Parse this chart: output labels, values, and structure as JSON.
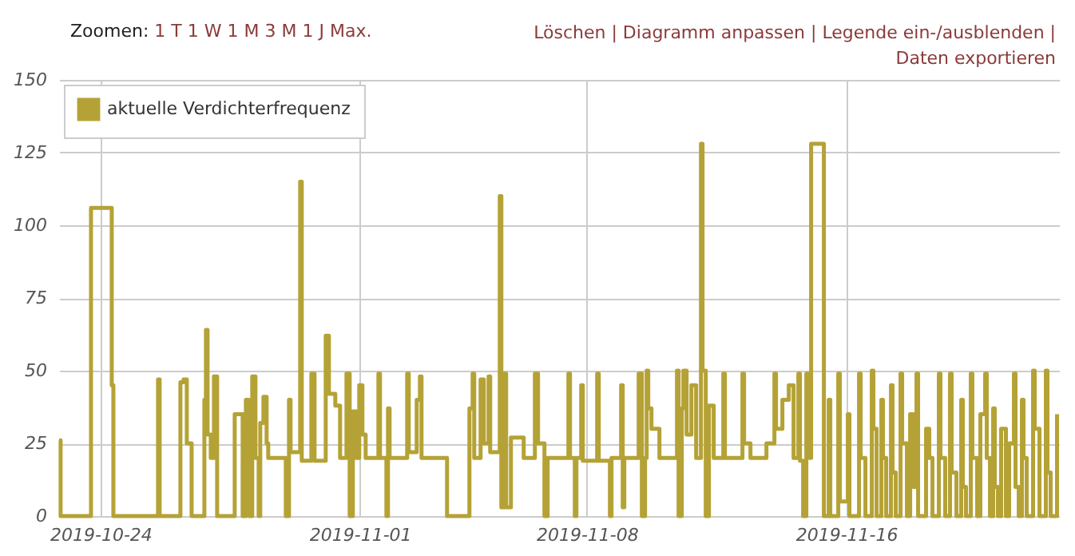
{
  "chart_data": {
    "type": "step",
    "legend": "top left",
    "grid": true,
    "annotations": [
      "Zoomen:",
      "1 T",
      "1 W",
      "1 M",
      "3 M",
      "1 J",
      "Max.",
      "Löschen |",
      "Diagramm anpassen |",
      "Legende ein-/ausblenden |",
      "Daten exportieren"
    ],
    "xlim": [
      "2019-10-22T17:18",
      "2019-11-22T13:30"
    ],
    "xticks": [
      "2019-10-24",
      "2019-11-01",
      "2019-11-08",
      "2019-11-16"
    ],
    "ylim": [
      0,
      150
    ],
    "yticks": [
      0,
      25,
      50,
      75,
      100,
      125,
      150
    ],
    "x": [
      "2019-10-22T17:18",
      "2019-10-22T18:25",
      "2019-10-23T16:55",
      "2019-10-24T08:16",
      "2019-10-24T09:28",
      "2019-10-25T18:33",
      "2019-10-25T19:44",
      "2019-10-26T11:06",
      "2019-10-26T13:28",
      "2019-10-26T15:50",
      "2019-10-26T19:23",
      "2019-10-27T04:50",
      "2019-10-27T06:00",
      "2019-10-27T07:12",
      "2019-10-27T09:34",
      "2019-10-27T11:55",
      "2019-10-27T14:17",
      "2019-10-28T03:17",
      "2019-10-28T09:12",
      "2019-10-28T11:34",
      "2019-10-28T13:56",
      "2019-10-28T16:17",
      "2019-10-28T18:39",
      "2019-10-28T21:01",
      "2019-10-28T22:12",
      "2019-10-29T00:34",
      "2019-10-29T02:55",
      "2019-10-29T04:06",
      "2019-10-29T17:07",
      "2019-10-29T19:29",
      "2019-10-29T20:39",
      "2019-10-30T03:45",
      "2019-10-30T04:56",
      "2019-10-30T12:02",
      "2019-10-30T14:24",
      "2019-10-30T22:40",
      "2019-10-31T01:02",
      "2019-10-31T05:45",
      "2019-10-31T09:18",
      "2019-10-31T14:02",
      "2019-10-31T16:24",
      "2019-10-31T18:45",
      "2019-10-31T21:07",
      "2019-10-31T23:29",
      "2019-11-01T01:51",
      "2019-11-01T04:13",
      "2019-11-01T13:40",
      "2019-11-01T14:51",
      "2019-11-01T19:35",
      "2019-11-01T20:46",
      "2019-11-01T21:57",
      "2019-11-02T10:57",
      "2019-11-02T12:08",
      "2019-11-02T18:02",
      "2019-11-02T20:24",
      "2019-11-02T21:35",
      "2019-11-03T16:29",
      "2019-11-04T09:03",
      "2019-11-04T11:25",
      "2019-11-04T12:36",
      "2019-11-04T17:19",
      "2019-11-04T19:41",
      "2019-11-04T23:14",
      "2019-11-05T00:25",
      "2019-11-05T07:30",
      "2019-11-05T08:41",
      "2019-11-05T11:03",
      "2019-11-05T12:14",
      "2019-11-05T15:46",
      "2019-11-06T01:13",
      "2019-11-06T09:30",
      "2019-11-06T11:51",
      "2019-11-06T16:35",
      "2019-11-06T18:57",
      "2019-11-07T10:19",
      "2019-11-07T11:30",
      "2019-11-07T15:03",
      "2019-11-07T16:14",
      "2019-11-07T19:47",
      "2019-11-07T20:58",
      "2019-11-08T07:36",
      "2019-11-08T08:47",
      "2019-11-08T17:03",
      "2019-11-08T18:14",
      "2019-11-09T01:20",
      "2019-11-09T02:31",
      "2019-11-09T03:42",
      "2019-11-09T14:20",
      "2019-11-09T16:42",
      "2019-11-09T19:04",
      "2019-11-09T20:15",
      "2019-11-09T21:26",
      "2019-11-09T23:48",
      "2019-11-10T05:42",
      "2019-11-10T18:42",
      "2019-11-10T19:53",
      "2019-11-10T22:15",
      "2019-11-10T23:26",
      "2019-11-11T01:48",
      "2019-11-11T05:21",
      "2019-11-11T08:53",
      "2019-11-11T12:26",
      "2019-11-11T13:37",
      "2019-11-11T15:59",
      "2019-11-11T18:21",
      "2019-11-11T21:53",
      "2019-11-12T04:59",
      "2019-11-12T06:10",
      "2019-11-12T19:10",
      "2019-11-12T20:21",
      "2019-11-13T01:05",
      "2019-11-13T12:54",
      "2019-11-13T18:49",
      "2019-11-13T20:00",
      "2019-11-14T00:43",
      "2019-11-14T05:27",
      "2019-11-14T09:00",
      "2019-11-14T12:33",
      "2019-11-14T13:43",
      "2019-11-14T16:05",
      "2019-11-14T18:27",
      "2019-11-14T20:49",
      "2019-11-14T21:59",
      "2019-11-15T07:26",
      "2019-11-15T11:00",
      "2019-11-15T12:11",
      "2019-11-15T18:05",
      "2019-11-15T19:16",
      "2019-11-16T01:10",
      "2019-11-16T02:21",
      "2019-11-16T09:27",
      "2019-11-16T10:38",
      "2019-11-16T14:11",
      "2019-11-16T18:54",
      "2019-11-16T20:05",
      "2019-11-16T22:27",
      "2019-11-17T02:00",
      "2019-11-17T03:11",
      "2019-11-17T05:33",
      "2019-11-17T09:05",
      "2019-11-17T10:16",
      "2019-11-17T12:38",
      "2019-11-17T16:11",
      "2019-11-17T17:22",
      "2019-11-17T20:55",
      "2019-11-17T23:17",
      "2019-11-18T01:39",
      "2019-11-18T04:00",
      "2019-11-18T05:11",
      "2019-11-18T11:05",
      "2019-11-18T13:27",
      "2019-11-18T15:49",
      "2019-11-18T20:33",
      "2019-11-18T21:44",
      "2019-11-19T01:16",
      "2019-11-19T04:49",
      "2019-11-19T06:00",
      "2019-11-19T09:33",
      "2019-11-19T13:06",
      "2019-11-19T14:17",
      "2019-11-19T16:38",
      "2019-11-19T20:11",
      "2019-11-19T21:22",
      "2019-11-20T00:55",
      "2019-11-20T03:17",
      "2019-11-20T06:50",
      "2019-11-20T08:01",
      "2019-11-20T10:23",
      "2019-11-20T12:45",
      "2019-11-20T13:56",
      "2019-11-20T16:17",
      "2019-11-20T18:39",
      "2019-11-20T22:12",
      "2019-11-21T00:34",
      "2019-11-21T04:07",
      "2019-11-21T05:18",
      "2019-11-21T07:40",
      "2019-11-21T10:02",
      "2019-11-21T11:13",
      "2019-11-21T13:34",
      "2019-11-21T18:18",
      "2019-11-21T19:29",
      "2019-11-21T23:02",
      "2019-11-22T03:45",
      "2019-11-22T04:56",
      "2019-11-22T07:18",
      "2019-11-22T12:02"
    ],
    "series": [
      {
        "name": "aktuelle Verdichterfrequenz",
        "color": "#b5a236",
        "values": [
          26,
          0,
          106,
          45,
          0,
          47,
          0,
          46,
          47,
          25,
          0,
          40,
          64,
          28,
          20,
          48,
          0,
          35,
          0,
          40,
          0,
          48,
          20,
          0,
          32,
          41,
          25,
          20,
          0,
          40,
          22,
          115,
          19,
          49,
          19,
          62,
          42,
          38,
          20,
          49,
          0,
          36,
          20,
          45,
          28,
          20,
          49,
          20,
          0,
          37,
          20,
          49,
          22,
          40,
          48,
          20,
          0,
          37,
          49,
          20,
          47,
          25,
          48,
          22,
          110,
          3,
          49,
          3,
          27,
          20,
          49,
          25,
          0,
          20,
          49,
          20,
          0,
          20,
          45,
          19,
          49,
          19,
          0,
          20,
          45,
          3,
          20,
          49,
          0,
          20,
          50,
          37,
          30,
          20,
          50,
          0,
          37,
          50,
          28,
          45,
          20,
          128,
          50,
          0,
          38,
          20,
          49,
          20,
          49,
          25,
          20,
          25,
          49,
          30,
          40,
          45,
          20,
          49,
          19,
          0,
          49,
          20,
          128,
          0,
          40,
          0,
          49,
          5,
          35,
          0,
          49,
          20,
          0,
          50,
          30,
          0,
          40,
          20,
          0,
          45,
          15,
          0,
          49,
          25,
          0,
          35,
          10,
          49,
          0,
          30,
          20,
          0,
          49,
          20,
          0,
          49,
          15,
          0,
          40,
          10,
          0,
          49,
          20,
          0,
          35,
          49,
          20,
          0,
          37,
          10,
          0,
          30,
          0,
          25,
          49,
          10,
          0,
          40,
          20,
          0,
          50,
          30,
          0,
          50,
          15,
          0,
          35
        ]
      }
    ]
  }
}
